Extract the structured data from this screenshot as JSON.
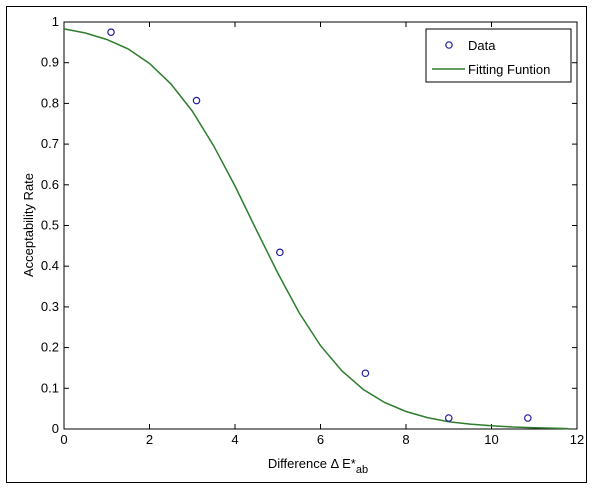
{
  "chart_data": {
    "type": "scatter",
    "title": "",
    "xlabel": {
      "main": "Difference Δ E*",
      "sub": "ab"
    },
    "ylabel": "Acceptability Rate",
    "xlim": [
      0,
      12
    ],
    "ylim": [
      0,
      1
    ],
    "xticks": [
      "0",
      "2",
      "4",
      "6",
      "8",
      "10",
      "12"
    ],
    "yticks": [
      "0",
      "0.1",
      "0.2",
      "0.3",
      "0.4",
      "0.5",
      "0.6",
      "0.7",
      "0.8",
      "0.9",
      "1"
    ],
    "grid": false,
    "legend_position": "top-right",
    "series": [
      {
        "name": "Data",
        "kind": "scatter",
        "color": "#1f1f9f",
        "marker": "circle-open",
        "x": [
          1.1,
          3.1,
          5.05,
          7.05,
          9.0,
          10.85
        ],
        "y": [
          0.975,
          0.807,
          0.434,
          0.137,
          0.027,
          0.027
        ]
      },
      {
        "name": "Fitting Funtion",
        "kind": "line",
        "color": "#2e7d2e",
        "function": "logistic",
        "x": [
          0,
          0.5,
          1,
          1.5,
          2,
          2.5,
          3,
          3.5,
          4,
          4.5,
          5,
          5.5,
          6,
          6.5,
          7,
          7.5,
          8,
          8.5,
          9,
          9.5,
          10,
          10.5,
          11,
          11.5,
          11.8
        ],
        "y": [
          0.983,
          0.973,
          0.957,
          0.934,
          0.898,
          0.848,
          0.781,
          0.696,
          0.597,
          0.489,
          0.383,
          0.286,
          0.205,
          0.143,
          0.097,
          0.065,
          0.043,
          0.028,
          0.018,
          0.012,
          0.008,
          0.005,
          0.003,
          0.002,
          0.001
        ]
      }
    ]
  }
}
